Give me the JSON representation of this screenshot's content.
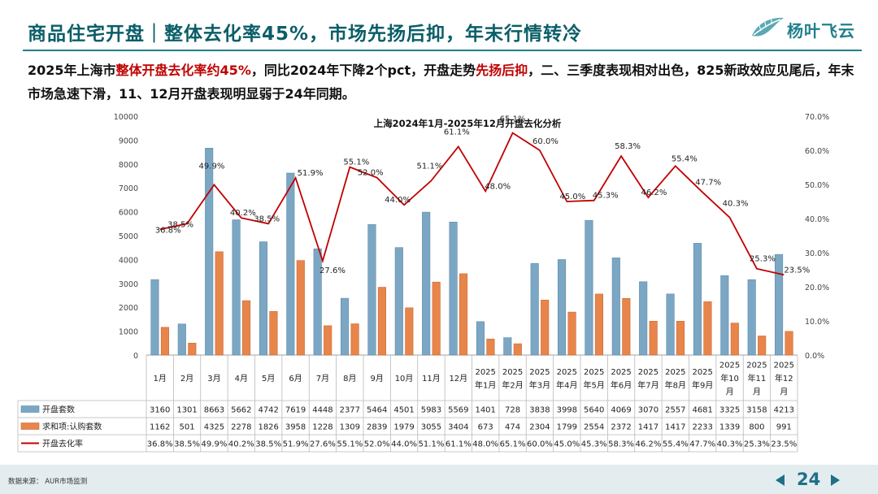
{
  "header": {
    "title": "商品住宅开盘｜整体去化率45%，市场先扬后抑，年末行情转冷",
    "logo_text": "杨叶飞云",
    "logo_icon": "leaf-icon"
  },
  "summary": {
    "part1": "2025年上海市",
    "part2": "整体开盘去化率约45%",
    "part3": "，同比2024年下降2个pct，开盘走势",
    "part4": "先扬后抑",
    "part5": "，二、三季度表现相对出色，825新政效应见尾后，年末市场急速下滑，11、12月开盘表现明显弱于24年同期。",
    "highlight_color": "#c00000"
  },
  "chart_data": {
    "type": "bar+line",
    "title": "上海2024年1月-2025年12月开盘去化分析",
    "categories": [
      "1月",
      "2月",
      "3月",
      "4月",
      "5月",
      "6月",
      "7月",
      "8月",
      "9月",
      "10月",
      "11月",
      "12月",
      "2025年1月",
      "2025年2月",
      "2025年3月",
      "2025年4月",
      "2025年5月",
      "2025年6月",
      "2025年7月",
      "2025年8月",
      "2025年9月",
      "2025年10月",
      "2025年11月",
      "2025年12月"
    ],
    "category_lines": [
      [
        "1月"
      ],
      [
        "2月"
      ],
      [
        "3月"
      ],
      [
        "4月"
      ],
      [
        "5月"
      ],
      [
        "6月"
      ],
      [
        "7月"
      ],
      [
        "8月"
      ],
      [
        "9月"
      ],
      [
        "10月"
      ],
      [
        "11月"
      ],
      [
        "12月"
      ],
      [
        "2025",
        "年1月"
      ],
      [
        "2025",
        "年2月"
      ],
      [
        "2025",
        "年3月"
      ],
      [
        "2025",
        "年4月"
      ],
      [
        "2025",
        "年5月"
      ],
      [
        "2025",
        "年6月"
      ],
      [
        "2025",
        "年7月"
      ],
      [
        "2025",
        "年8月"
      ],
      [
        "2025",
        "年9月"
      ],
      [
        "2025",
        "年10",
        "月"
      ],
      [
        "2025",
        "年11",
        "月"
      ],
      [
        "2025",
        "年12",
        "月"
      ]
    ],
    "series": [
      {
        "name": "开盘套数",
        "kind": "bar",
        "axis": "left",
        "color": "#7ba7c4",
        "values": [
          3160,
          1301,
          8663,
          5662,
          4742,
          7619,
          4448,
          2377,
          5464,
          4501,
          5983,
          5569,
          1401,
          728,
          3838,
          3998,
          5640,
          4069,
          3070,
          2557,
          4681,
          3325,
          3158,
          4213
        ]
      },
      {
        "name": "求和项:认购套数",
        "kind": "bar",
        "axis": "left",
        "color": "#e8854b",
        "values": [
          1162,
          501,
          4325,
          2278,
          1826,
          3958,
          1228,
          1309,
          2839,
          1979,
          3055,
          3404,
          673,
          474,
          2304,
          1799,
          2554,
          2372,
          1417,
          1417,
          2233,
          1339,
          800,
          991
        ]
      },
      {
        "name": "开盘去化率",
        "kind": "line",
        "axis": "right",
        "color": "#c00000",
        "values": [
          36.8,
          38.5,
          49.9,
          40.2,
          38.5,
          51.9,
          27.6,
          55.1,
          52.0,
          44.0,
          51.1,
          61.1,
          48.0,
          65.1,
          60.0,
          45.0,
          45.3,
          58.3,
          46.2,
          55.4,
          47.7,
          40.3,
          25.3,
          23.5
        ]
      }
    ],
    "rate_labels": [
      "36.8%",
      "38.5%",
      "49.9%",
      "40.2%",
      "38.5%",
      "51.9%",
      "27.6%",
      "55.1%",
      "52.0%",
      "44.0%",
      "51.1%",
      "61.1%",
      "48.0%",
      "65.1%",
      "60.0%",
      "45.0%",
      "45.3%",
      "58.3%",
      "46.2%",
      "55.4%",
      "47.7%",
      "40.3%",
      "25.3%",
      "23.5%"
    ],
    "y_left": {
      "min": 0,
      "max": 10000,
      "ticks": [
        "0",
        "1000",
        "2000",
        "3000",
        "4000",
        "5000",
        "6000",
        "7000",
        "8000",
        "9000",
        "10000"
      ]
    },
    "y_right": {
      "min": 0,
      "max": 70,
      "ticks": [
        "0.0%",
        "10.0%",
        "20.0%",
        "30.0%",
        "40.0%",
        "50.0%",
        "60.0%",
        "70.0%"
      ]
    },
    "legend": "bottom-table"
  },
  "footer": {
    "source": "数据来源：  AUR市场监测",
    "page_number": "24",
    "prev_icon": "triangle-left-icon",
    "next_icon": "triangle-right-icon",
    "accent": "#1f6f87"
  }
}
